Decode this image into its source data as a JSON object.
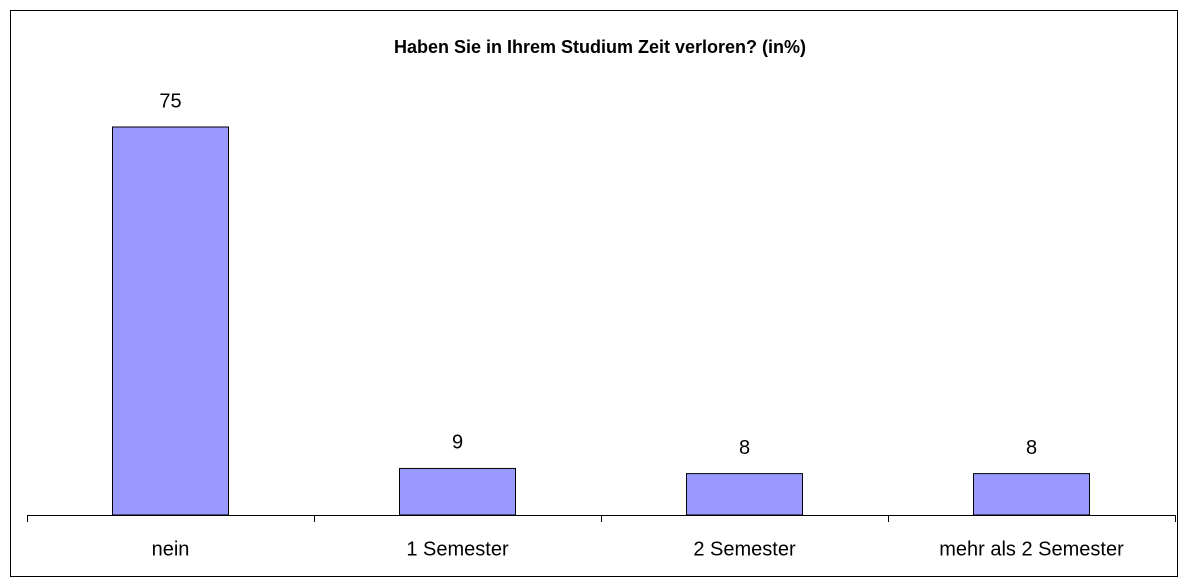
{
  "chart_data": {
    "type": "bar",
    "title": "Haben Sie in Ihrem Studium Zeit verloren? (in%)",
    "categories": [
      "nein",
      "1 Semester",
      "2 Semester",
      "mehr als 2 Semester"
    ],
    "values": [
      75,
      9,
      8,
      8
    ],
    "color": "#9999ff"
  }
}
